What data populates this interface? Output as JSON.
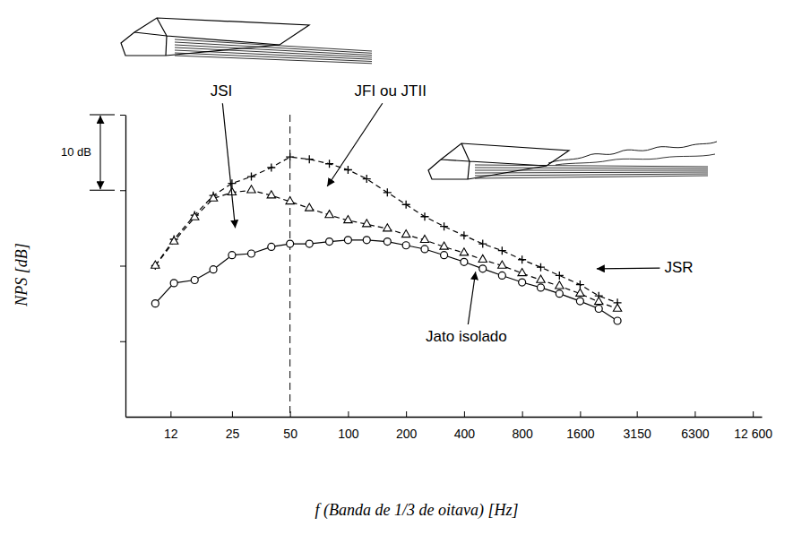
{
  "chart_data": {
    "type": "line",
    "x_label": "f (Banda de 1/3 de oitava) [Hz]",
    "y_label": "NPS [dB]",
    "x": [
      10,
      12.5,
      16,
      20,
      25,
      31.5,
      40,
      50,
      63,
      80,
      100,
      125,
      160,
      200,
      250,
      315,
      400,
      500,
      630,
      800,
      1000,
      1250,
      1600,
      2000,
      2500
    ],
    "series": [
      {
        "color": "#000000",
        "marker": "plus",
        "line_style": "dashed",
        "values": [
          10.0,
          13.5,
          16.7,
          19.3,
          20.9,
          21.8,
          23.0,
          24.4,
          24.1,
          23.5,
          22.7,
          21.5,
          19.7,
          18.1,
          16.5,
          15.2,
          14.0,
          12.9,
          12.0,
          10.8,
          9.8,
          8.7,
          7.5,
          6.0,
          5.1
        ]
      },
      {
        "color": "#000000",
        "marker": "triangle",
        "line_style": "dashed",
        "values": [
          10.0,
          13.2,
          16.4,
          18.9,
          19.7,
          20.0,
          19.3,
          18.5,
          17.6,
          16.7,
          16.0,
          15.5,
          14.9,
          14.1,
          13.4,
          12.5,
          11.7,
          10.8,
          10.0,
          9.0,
          8.1,
          7.3,
          6.3,
          5.2,
          4.3
        ]
      },
      {
        "color": "#000000",
        "marker": "circle",
        "line_style": "solid",
        "values": [
          5.0,
          7.7,
          8.1,
          9.5,
          11.4,
          11.6,
          12.5,
          12.9,
          12.9,
          13.2,
          13.4,
          13.4,
          13.2,
          12.7,
          12.2,
          11.4,
          10.5,
          9.6,
          8.7,
          7.8,
          7.1,
          6.3,
          5.3,
          4.3,
          2.7
        ]
      }
    ],
    "xlim": [
      7,
      14000
    ],
    "ylim": [
      -10,
      30
    ],
    "xticks": [
      12,
      25,
      50,
      100,
      200,
      400,
      800,
      1600,
      3150,
      6300,
      {
        "value": 12600,
        "label": "12 600"
      }
    ],
    "yticks": [
      0,
      10,
      20,
      30
    ],
    "log": "x",
    "grid": false,
    "tick_labels": "x",
    "vlines": [
      50
    ],
    "scale_bar": {
      "label": "10 dB",
      "from": 20,
      "to": 30
    },
    "annotations": [
      {
        "text": "JSI",
        "x": 22,
        "y": 33,
        "arrow_to": [
          26,
          15
        ]
      },
      {
        "text": "JFI ou JTII",
        "x": 166,
        "y": 33,
        "arrow_to": [
          78,
          20.5
        ]
      },
      {
        "text": "JSR",
        "x": 5200,
        "y": 9.6,
        "arrow_to": [
          1950,
          9.6
        ]
      },
      {
        "text": "Jato isolado",
        "x": 411,
        "y": 0.5,
        "arrow_to": [
          459,
          9.2
        ]
      }
    ]
  }
}
